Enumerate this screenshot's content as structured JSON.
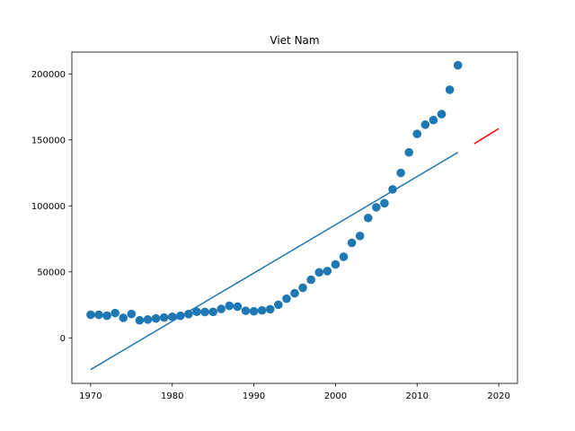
{
  "chart_data": {
    "type": "scatter",
    "title": "Viet Nam",
    "xlabel": "",
    "ylabel": "",
    "xlim": [
      1967.7,
      2022.3
    ],
    "ylim": [
      -34500,
      216500
    ],
    "xticks": [
      1970,
      1980,
      1990,
      2000,
      2010,
      2020
    ],
    "yticks": [
      0,
      50000,
      100000,
      150000,
      200000
    ],
    "grid": false,
    "colors": {
      "points": "#1f77b4",
      "fit": "#1f77b4",
      "forecast": "#ff0000"
    },
    "series": [
      {
        "kind": "scatter",
        "x": [
          1970,
          1971,
          1972,
          1973,
          1974,
          1975,
          1976,
          1977,
          1978,
          1979,
          1980,
          1981,
          1982,
          1983,
          1984,
          1985,
          1986,
          1987,
          1988,
          1989,
          1990,
          1991,
          1992,
          1993,
          1994,
          1995,
          1996,
          1997,
          1998,
          1999,
          2000,
          2001,
          2002,
          2003,
          2004,
          2005,
          2006,
          2007,
          2008,
          2009,
          2010,
          2011,
          2012,
          2013,
          2014,
          2015
        ],
        "y": [
          17500,
          17500,
          16800,
          18800,
          15200,
          18100,
          13300,
          13900,
          14700,
          15400,
          16000,
          16700,
          18000,
          19800,
          19600,
          19700,
          21900,
          24300,
          23700,
          20500,
          20100,
          20800,
          21700,
          25100,
          29700,
          33800,
          38000,
          44000,
          49600,
          50600,
          55600,
          61400,
          72000,
          77200,
          90800,
          98900,
          102000,
          112500,
          125000,
          140500,
          154500,
          161500,
          165000,
          169500,
          188000,
          206500
        ]
      },
      {
        "kind": "line",
        "x": [
          1970,
          2015
        ],
        "y": [
          -24000,
          140500
        ]
      },
      {
        "kind": "line",
        "x": [
          2017,
          2020
        ],
        "y": [
          147000,
          158500
        ]
      }
    ]
  }
}
